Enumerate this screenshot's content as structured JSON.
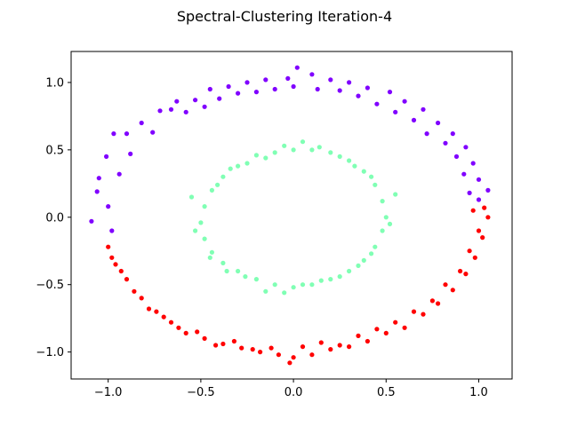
{
  "chart_data": {
    "type": "scatter",
    "title": "Spectral-Clustering Iteration-4",
    "xlabel": "",
    "ylabel": "",
    "xlim": [
      -1.2,
      1.18
    ],
    "ylim": [
      -1.2,
      1.23
    ],
    "xticks": [
      -1.0,
      -0.5,
      0.0,
      0.5,
      1.0
    ],
    "xtick_labels": [
      "−1.0",
      "−0.5",
      "0.0",
      "0.5",
      "1.0"
    ],
    "yticks": [
      -1.0,
      -0.5,
      0.0,
      0.5,
      1.0
    ],
    "ytick_labels": [
      "−1.0",
      "−0.5",
      "0.0",
      "0.5",
      "1.0"
    ],
    "grid": false,
    "legend": "none",
    "clusters": [
      {
        "color": "#8000ff",
        "description": "outer ring, upper half",
        "points": [
          [
            -1.06,
            0.19
          ],
          [
            -1.05,
            0.29
          ],
          [
            -1.01,
            0.45
          ],
          [
            -0.97,
            0.62
          ],
          [
            -0.9,
            0.62
          ],
          [
            -0.82,
            0.7
          ],
          [
            -0.72,
            0.79
          ],
          [
            -0.63,
            0.86
          ],
          [
            -0.53,
            0.87
          ],
          [
            -0.45,
            0.95
          ],
          [
            -0.35,
            0.97
          ],
          [
            -0.25,
            1.0
          ],
          [
            -0.15,
            1.02
          ],
          [
            -0.03,
            1.03
          ],
          [
            0.02,
            1.11
          ],
          [
            0.1,
            1.06
          ],
          [
            0.2,
            1.02
          ],
          [
            0.3,
            1.0
          ],
          [
            0.4,
            0.96
          ],
          [
            0.52,
            0.93
          ],
          [
            0.6,
            0.86
          ],
          [
            0.7,
            0.8
          ],
          [
            0.78,
            0.7
          ],
          [
            0.86,
            0.62
          ],
          [
            0.93,
            0.52
          ],
          [
            0.97,
            0.4
          ],
          [
            1.0,
            0.28
          ],
          [
            1.05,
            0.2
          ],
          [
            -1.09,
            -0.03
          ],
          [
            -1.0,
            0.08
          ],
          [
            -0.98,
            -0.1
          ],
          [
            -0.94,
            0.32
          ],
          [
            -0.88,
            0.47
          ],
          [
            -0.76,
            0.63
          ],
          [
            -0.66,
            0.8
          ],
          [
            -0.58,
            0.78
          ],
          [
            -0.48,
            0.82
          ],
          [
            -0.4,
            0.88
          ],
          [
            -0.3,
            0.92
          ],
          [
            -0.2,
            0.93
          ],
          [
            -0.1,
            0.95
          ],
          [
            0.0,
            0.97
          ],
          [
            0.13,
            0.95
          ],
          [
            0.25,
            0.94
          ],
          [
            0.35,
            0.9
          ],
          [
            0.45,
            0.84
          ],
          [
            0.55,
            0.78
          ],
          [
            0.65,
            0.72
          ],
          [
            0.72,
            0.62
          ],
          [
            0.82,
            0.55
          ],
          [
            0.88,
            0.45
          ],
          [
            0.92,
            0.32
          ],
          [
            0.95,
            0.18
          ],
          [
            1.0,
            0.13
          ]
        ]
      },
      {
        "color": "#ff0000",
        "description": "outer ring, lower half",
        "points": [
          [
            -1.0,
            -0.22
          ],
          [
            -0.96,
            -0.35
          ],
          [
            -0.9,
            -0.46
          ],
          [
            -0.82,
            -0.6
          ],
          [
            -0.74,
            -0.7
          ],
          [
            -0.66,
            -0.78
          ],
          [
            -0.58,
            -0.86
          ],
          [
            -0.48,
            -0.9
          ],
          [
            -0.38,
            -0.94
          ],
          [
            -0.28,
            -0.97
          ],
          [
            -0.18,
            -1.0
          ],
          [
            -0.08,
            -1.02
          ],
          [
            0.0,
            -1.04
          ],
          [
            0.1,
            -1.02
          ],
          [
            0.2,
            -0.98
          ],
          [
            0.3,
            -0.96
          ],
          [
            0.4,
            -0.92
          ],
          [
            0.5,
            -0.86
          ],
          [
            0.6,
            -0.82
          ],
          [
            0.7,
            -0.72
          ],
          [
            0.78,
            -0.64
          ],
          [
            0.86,
            -0.54
          ],
          [
            0.93,
            -0.42
          ],
          [
            0.98,
            -0.3
          ],
          [
            1.02,
            -0.15
          ],
          [
            1.05,
            0.0
          ],
          [
            1.03,
            0.07
          ],
          [
            -0.98,
            -0.3
          ],
          [
            -0.93,
            -0.4
          ],
          [
            -0.86,
            -0.55
          ],
          [
            -0.78,
            -0.68
          ],
          [
            -0.7,
            -0.74
          ],
          [
            -0.62,
            -0.82
          ],
          [
            -0.52,
            -0.85
          ],
          [
            -0.42,
            -0.95
          ],
          [
            -0.32,
            -0.92
          ],
          [
            -0.22,
            -0.98
          ],
          [
            -0.12,
            -0.97
          ],
          [
            -0.02,
            -1.08
          ],
          [
            0.05,
            -0.96
          ],
          [
            0.15,
            -0.93
          ],
          [
            0.25,
            -0.95
          ],
          [
            0.35,
            -0.88
          ],
          [
            0.45,
            -0.83
          ],
          [
            0.55,
            -0.78
          ],
          [
            0.65,
            -0.7
          ],
          [
            0.75,
            -0.62
          ],
          [
            0.82,
            -0.5
          ],
          [
            0.9,
            -0.4
          ],
          [
            0.95,
            -0.25
          ],
          [
            1.0,
            -0.1
          ],
          [
            0.97,
            0.05
          ]
        ]
      },
      {
        "color": "#80ffb4",
        "description": "inner ring",
        "points": [
          [
            0.5,
            0.0
          ],
          [
            0.48,
            0.12
          ],
          [
            0.44,
            0.24
          ],
          [
            0.38,
            0.34
          ],
          [
            0.3,
            0.42
          ],
          [
            0.2,
            0.48
          ],
          [
            0.1,
            0.5
          ],
          [
            0.0,
            0.5
          ],
          [
            -0.1,
            0.48
          ],
          [
            -0.2,
            0.46
          ],
          [
            -0.3,
            0.38
          ],
          [
            -0.38,
            0.3
          ],
          [
            -0.44,
            0.2
          ],
          [
            -0.48,
            0.08
          ],
          [
            -0.5,
            -0.04
          ],
          [
            -0.48,
            -0.16
          ],
          [
            -0.44,
            -0.26
          ],
          [
            -0.38,
            -0.34
          ],
          [
            -0.3,
            -0.4
          ],
          [
            -0.2,
            -0.46
          ],
          [
            -0.1,
            -0.5
          ],
          [
            0.0,
            -0.52
          ],
          [
            0.1,
            -0.5
          ],
          [
            0.2,
            -0.46
          ],
          [
            0.3,
            -0.4
          ],
          [
            0.38,
            -0.32
          ],
          [
            0.44,
            -0.22
          ],
          [
            0.48,
            -0.1
          ],
          [
            0.55,
            0.17
          ],
          [
            0.42,
            0.3
          ],
          [
            0.33,
            0.38
          ],
          [
            0.25,
            0.45
          ],
          [
            0.14,
            0.52
          ],
          [
            0.05,
            0.56
          ],
          [
            -0.05,
            0.53
          ],
          [
            -0.15,
            0.44
          ],
          [
            -0.25,
            0.4
          ],
          [
            -0.34,
            0.36
          ],
          [
            -0.41,
            0.24
          ],
          [
            -0.55,
            0.15
          ],
          [
            -0.53,
            -0.1
          ],
          [
            -0.45,
            -0.3
          ],
          [
            -0.36,
            -0.4
          ],
          [
            -0.26,
            -0.44
          ],
          [
            -0.15,
            -0.55
          ],
          [
            -0.05,
            -0.56
          ],
          [
            0.05,
            -0.5
          ],
          [
            0.15,
            -0.47
          ],
          [
            0.25,
            -0.44
          ],
          [
            0.35,
            -0.36
          ],
          [
            0.42,
            -0.27
          ],
          [
            0.52,
            -0.05
          ]
        ]
      }
    ]
  }
}
